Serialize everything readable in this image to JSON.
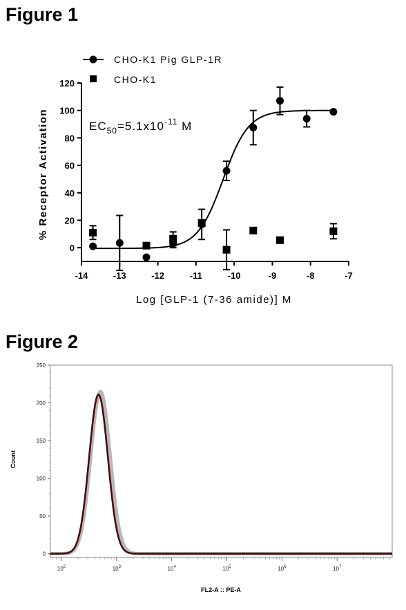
{
  "figures": [
    {
      "title": "Figure 1",
      "chart_data": {
        "type": "scatter",
        "xlabel": "Log [GLP-1 (7-36 amide)] M",
        "ylabel": "% Receptor Activation",
        "xlim": [
          -14,
          -7
        ],
        "ylim": [
          -10,
          120
        ],
        "xticks": [
          -14,
          -13,
          -12,
          -11,
          -10,
          -9,
          -8,
          -7
        ],
        "yticks": [
          0,
          20,
          40,
          60,
          80,
          100,
          120
        ],
        "legend_position": "top-left",
        "annotation": {
          "base": "EC",
          "sub": "50",
          "mid": "=5.1x10",
          "sup": "-11",
          "unit": " M"
        },
        "series": [
          {
            "name": "CHO-K1 Pig GLP-1R",
            "marker": "circle",
            "line": "fit",
            "points": [
              {
                "x": -13.7,
                "y": 1,
                "err": 0
              },
              {
                "x": -13.0,
                "y": 3.5,
                "err": 20
              },
              {
                "x": -12.3,
                "y": -7,
                "err": 0
              },
              {
                "x": -11.6,
                "y": 3,
                "err": 3
              },
              {
                "x": -10.85,
                "y": 17,
                "err": 11
              },
              {
                "x": -10.2,
                "y": 56,
                "err": 7
              },
              {
                "x": -9.5,
                "y": 87.5,
                "err": 12.5
              },
              {
                "x": -8.8,
                "y": 107,
                "err": 10
              },
              {
                "x": -8.1,
                "y": 94,
                "err": 6
              },
              {
                "x": -7.4,
                "y": 99,
                "err": 0
              }
            ],
            "fit": {
              "bottom": -0.5,
              "top": 100,
              "log_ec50": -10.29,
              "hill": 1.3
            }
          },
          {
            "name": "CHO-K1",
            "marker": "square",
            "line": "none",
            "points": [
              {
                "x": -13.7,
                "y": 11,
                "err": 5
              },
              {
                "x": -12.3,
                "y": 1.5,
                "err": 0
              },
              {
                "x": -11.6,
                "y": 6.5,
                "err": 5
              },
              {
                "x": -10.85,
                "y": 18,
                "err": 0
              },
              {
                "x": -10.2,
                "y": -1.5,
                "err": 14.5
              },
              {
                "x": -9.5,
                "y": 12.5,
                "err": 0
              },
              {
                "x": -8.8,
                "y": 5.5,
                "err": 0
              },
              {
                "x": -7.4,
                "y": 12,
                "err": 5.5
              }
            ]
          }
        ]
      }
    },
    {
      "title": "Figure 2",
      "chart_data": {
        "type": "area",
        "xlabel": "FL2-A :: PE-A",
        "ylabel": "Count",
        "xscale": "log",
        "xlim": [
          63,
          100000000
        ],
        "ylim": [
          -5,
          250
        ],
        "xticks": [
          {
            "value": 100,
            "base": "10",
            "exp": "2"
          },
          {
            "value": 1000,
            "base": "10",
            "exp": "3"
          },
          {
            "value": 10000,
            "base": "10",
            "exp": "4"
          },
          {
            "value": 100000,
            "base": "10",
            "exp": "5"
          },
          {
            "value": 1000000,
            "base": "10",
            "exp": "6"
          },
          {
            "value": 10000000,
            "base": "10",
            "exp": "7"
          }
        ],
        "yticks": [
          0,
          50,
          100,
          150,
          200,
          250
        ],
        "series": [
          {
            "color": "#aaaaaa",
            "peak_x": 510,
            "peak_y": 215,
            "log_sigma": 0.175
          },
          {
            "color": "#4a0a0a",
            "peak_x": 470,
            "peak_y": 211,
            "log_sigma": 0.17
          }
        ]
      }
    }
  ]
}
